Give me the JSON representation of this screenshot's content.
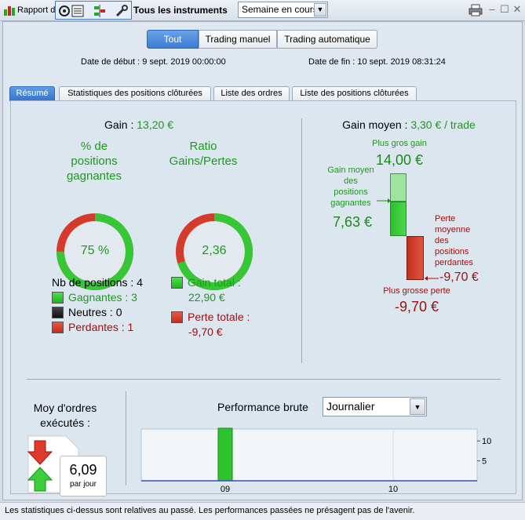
{
  "titlebar": {
    "report_label": "Rapport d",
    "instruments": "Tous les instruments",
    "period": "Semaine en cours",
    "icons": [
      "report-icon",
      "settings-icon",
      "columns-icon",
      "tools-icon"
    ]
  },
  "mode_tabs": [
    "Tout",
    "Trading manuel",
    "Trading automatique"
  ],
  "dates": {
    "start": "Date de début :  9 sept. 2019 00:00:00",
    "end": "Date de fin :  10 sept. 2019 08:31:24"
  },
  "tabs": [
    "Résumé",
    "Statistiques des positions clôturées",
    "Liste des ordres",
    "Liste des positions clôturées"
  ],
  "summary": {
    "gain_label": "Gain :",
    "gain_value": "13,20 €",
    "pct_title": [
      "% de",
      "positions",
      "gagnantes"
    ],
    "pct_value": "75 %",
    "pct_fraction": 0.75,
    "ratio_title": [
      "Ratio",
      "Gains/Pertes"
    ],
    "ratio_value": "2,36",
    "ratio_fraction": 0.7,
    "nb_positions": "Nb de positions : 4",
    "gagnantes": "Gagnantes : 3",
    "neutres": "Neutres : 0",
    "perdantes": "Perdantes : 1",
    "gain_total_label": "Gain total :",
    "gain_total_value": "22,90 €",
    "perte_totale_label": "Perte totale :",
    "perte_totale_value": "-9,70 €"
  },
  "gain_moyen": {
    "label": "Gain moyen :",
    "value": "3,30 € / trade",
    "plus_gros_gain_label": "Plus gros gain",
    "plus_gros_gain_value": "14,00 €",
    "gain_moyen_positions_label": [
      "Gain moyen",
      "des",
      "positions",
      "gagnantes"
    ],
    "gain_moyen_positions_value": "7,63 €",
    "perte_moyenne_label": [
      "Perte",
      "moyenne",
      "des",
      "positions",
      "perdantes"
    ],
    "perte_moyenne_value": "-9,70 €",
    "plus_grosse_perte_label": "Plus grosse perte",
    "plus_grosse_perte_value": "-9,70 €"
  },
  "orders": {
    "title": [
      "Moy d'ordres",
      "exécutés :"
    ],
    "value": "6,09",
    "unit": "par jour"
  },
  "performance": {
    "label": "Performance brute",
    "period": "Journalier"
  },
  "chart_data": {
    "type": "bar",
    "categories": [
      "09",
      "10"
    ],
    "values": [
      13.2,
      0
    ],
    "yticks": [
      5,
      10
    ],
    "ylim": [
      0,
      13
    ]
  },
  "footer": "Les statistiques ci-dessus sont relatives au passé. Les performances passées ne présagent pas de l'avenir."
}
